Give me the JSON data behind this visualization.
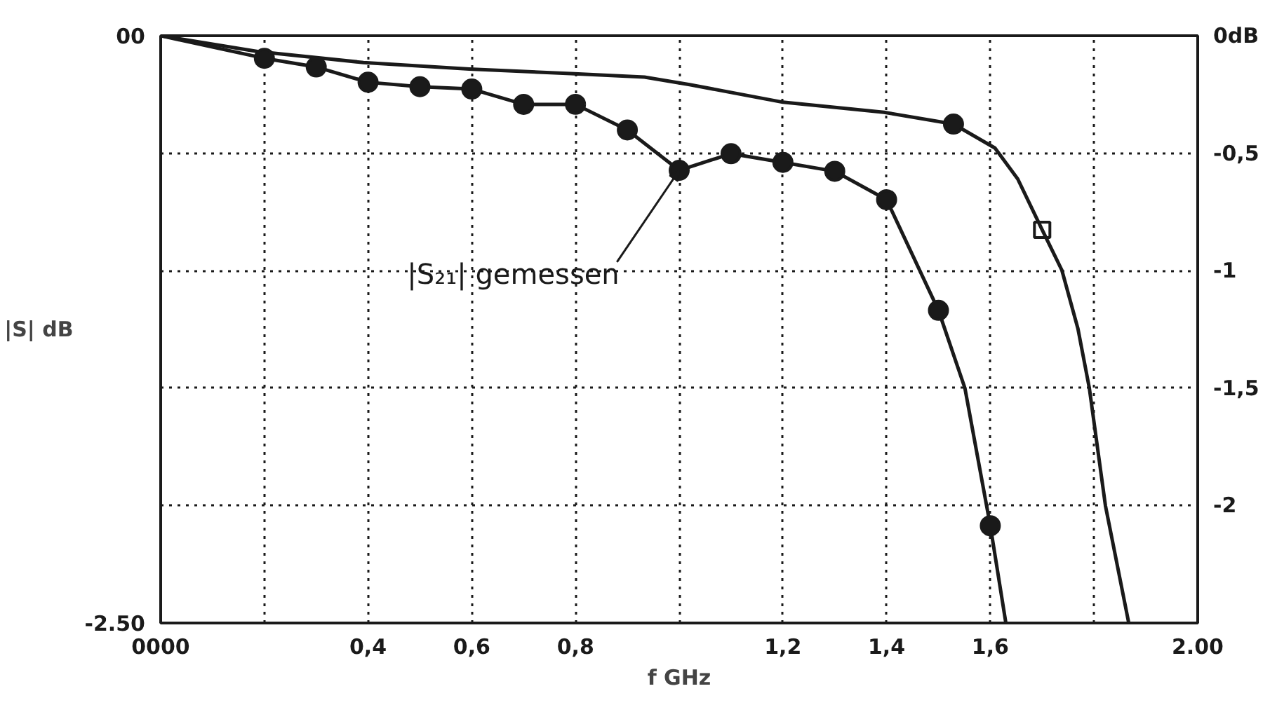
{
  "chart_data": {
    "type": "line",
    "xlabel": "f GHz",
    "ylabel": "|S| dB",
    "xlim": [
      0,
      2.0
    ],
    "xticks": [
      {
        "value": 0,
        "label": "0000"
      },
      {
        "value": 0.2,
        "label": null
      },
      {
        "value": 0.4,
        "label": "0,4"
      },
      {
        "value": 0.6,
        "label": "0,6"
      },
      {
        "value": 0.8,
        "label": "0,8"
      },
      {
        "value": 1.0,
        "label": null
      },
      {
        "value": 1.2,
        "label": "1,2"
      },
      {
        "value": 1.4,
        "label": "1,4"
      },
      {
        "value": 1.6,
        "label": "1,6"
      },
      {
        "value": 1.8,
        "label": null
      },
      {
        "value": 2.0,
        "label": "2.00"
      }
    ],
    "ylim": [
      -2.5,
      0
    ],
    "yticks": [
      {
        "value": 0,
        "label": "00"
      },
      {
        "value": -2.5,
        "label": "-2.50"
      }
    ],
    "y2lim": [
      -2.5,
      0
    ],
    "y2ticks": [
      {
        "value": 0,
        "label": "0dB"
      },
      {
        "value": -0.5,
        "label": "-0,5"
      },
      {
        "value": -1,
        "label": "-1"
      },
      {
        "value": -1.5,
        "label": "-1,5"
      },
      {
        "value": -2,
        "label": "-2"
      }
    ],
    "grid": true,
    "line_style": "solid",
    "series": [
      {
        "marker": "none",
        "color": "#1a1a1a",
        "x": [
          0,
          0.187,
          0.391,
          0.595,
          0.791,
          0.933,
          1.02,
          1.2,
          1.395,
          1.529,
          1.609,
          1.653,
          1.7,
          1.738,
          1.769,
          1.791,
          1.822,
          1.867
        ],
        "values": [
          0,
          -0.067,
          -0.114,
          -0.142,
          -0.161,
          -0.176,
          -0.208,
          -0.283,
          -0.326,
          -0.376,
          -0.478,
          -0.61,
          -0.826,
          -0.998,
          -1.247,
          -1.5,
          -2.0,
          -2.5
        ]
      },
      {
        "marker": "none",
        "color": "#1a1a1a",
        "x": [
          0,
          0.2,
          0.3,
          0.4,
          0.5,
          0.6,
          0.7,
          0.8,
          0.9,
          1.0,
          1.1,
          1.2,
          1.3,
          1.4,
          1.5,
          1.551,
          1.6,
          1.63
        ],
        "values": [
          0,
          -0.096,
          -0.133,
          -0.198,
          -0.217,
          -0.227,
          -0.292,
          -0.292,
          -0.401,
          -0.573,
          -0.502,
          -0.539,
          -0.577,
          -0.698,
          -1.169,
          -1.5,
          -2.086,
          -2.5
        ]
      },
      {
        "type": "scatter",
        "marker": "circle",
        "color": "#1a1a1a",
        "x": [
          0.2,
          0.3,
          0.4,
          0.5,
          0.6,
          0.7,
          0.8,
          0.9,
          1.0,
          1.1,
          1.2,
          1.3,
          1.4,
          1.5,
          1.6
        ],
        "values": [
          -0.096,
          -0.133,
          -0.198,
          -0.217,
          -0.227,
          -0.292,
          -0.292,
          -0.401,
          -0.573,
          -0.502,
          -0.539,
          -0.577,
          -0.698,
          -1.169,
          -2.086
        ]
      },
      {
        "type": "scatter",
        "marker": "circle",
        "color": "#1a1a1a",
        "x": [
          1.529
        ],
        "values": [
          -0.376
        ]
      },
      {
        "type": "scatter",
        "marker": "square",
        "color": "#1a1a1a",
        "x": [
          1.7
        ],
        "values": [
          -0.826
        ]
      }
    ],
    "annotations": [
      {
        "text": "|S₂₁| gemessen",
        "x": 1.0,
        "y": -0.573
      }
    ]
  }
}
